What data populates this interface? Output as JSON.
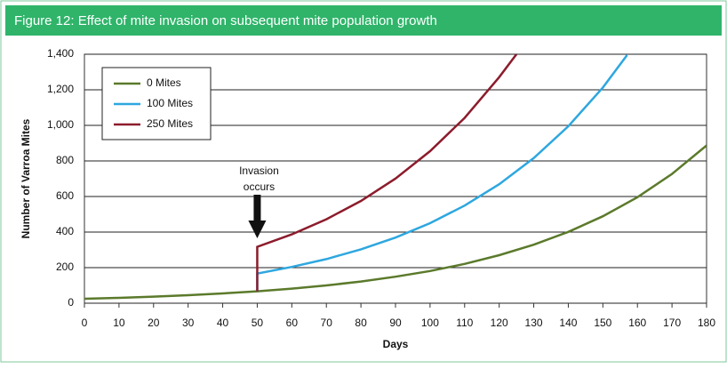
{
  "chart_data": {
    "type": "line",
    "title": "Figure 12:  Effect of mite invasion on subsequent mite population growth",
    "x_label": "Days",
    "y_label": "Number of Varroa Mites",
    "xlim": [
      0,
      180
    ],
    "xticks": [
      0,
      10,
      20,
      30,
      40,
      50,
      60,
      70,
      80,
      90,
      100,
      110,
      120,
      130,
      140,
      150,
      160,
      170,
      180
    ],
    "ylim": [
      0,
      1400
    ],
    "yticks": [
      0,
      200,
      400,
      600,
      800,
      {
        "value": 1000,
        "label": "1,000"
      },
      {
        "value": 1200,
        "label": "1,200"
      },
      {
        "value": 1400,
        "label": "1,400"
      }
    ],
    "grid": true,
    "legend": "upper left",
    "annotation": {
      "lines": [
        "Invasion",
        "occurs"
      ],
      "x": 50
    },
    "series": [
      {
        "name": "0 Mites",
        "color": "#5b7a2b",
        "x": [
          0,
          10,
          20,
          30,
          40,
          50,
          60,
          70,
          80,
          90,
          100,
          110,
          120,
          130,
          140,
          150,
          160,
          170,
          180
        ],
        "values": [
          25,
          30,
          37,
          45,
          55,
          67,
          82,
          100,
          122,
          149,
          181,
          221,
          270,
          329,
          401,
          489,
          596,
          727,
          887
        ]
      },
      {
        "name": "100 Mites",
        "color": "#2ea7df",
        "x": [
          50,
          50,
          60,
          70,
          80,
          90,
          100,
          110,
          120,
          130,
          140,
          150,
          157
        ],
        "values": [
          67,
          167,
          204,
          248,
          303,
          369,
          450,
          549,
          669,
          816,
          995,
          1213,
          1395
        ]
      },
      {
        "name": "250 Mites",
        "color": "#8c1c2c",
        "x": [
          50,
          50,
          60,
          70,
          80,
          90,
          100,
          110,
          120,
          125
        ],
        "values": [
          67,
          317,
          387,
          472,
          575,
          701,
          855,
          1042,
          1271,
          1400
        ]
      }
    ]
  }
}
